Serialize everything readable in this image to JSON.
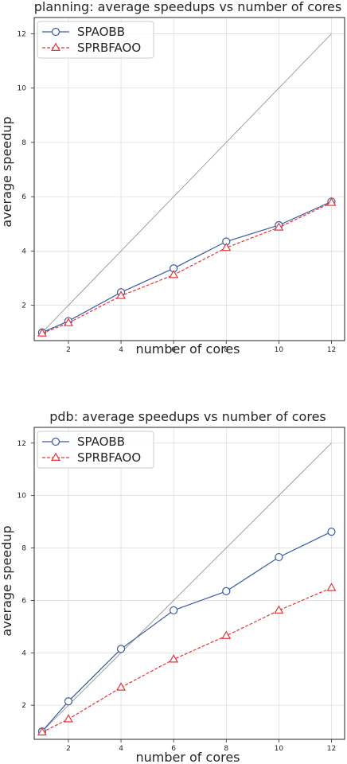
{
  "chart_data": [
    {
      "type": "line",
      "title": "planning: average speedups vs number of cores",
      "xlabel": "number of cores",
      "ylabel": "average speedup",
      "x": [
        1,
        2,
        4,
        6,
        8,
        10,
        12
      ],
      "xticks": [
        "2",
        "4",
        "6",
        "8",
        "10",
        "12"
      ],
      "yticks": [
        "2",
        "4",
        "6",
        "8",
        "10",
        "12"
      ],
      "xlim": [
        0.7,
        12.5
      ],
      "ylim": [
        0.7,
        12.6
      ],
      "grid": true,
      "legend_position": "top-left",
      "ideal_line": true,
      "series": [
        {
          "name": "SPAOBB",
          "values": [
            1.0,
            1.42,
            2.48,
            3.36,
            4.35,
            4.95,
            5.82
          ],
          "color": "#3a5ba0",
          "marker": "circle",
          "dash": "solid"
        },
        {
          "name": "SPRBFAOO",
          "values": [
            0.97,
            1.35,
            2.35,
            3.12,
            4.12,
            4.87,
            5.78
          ],
          "color": "#e3343a",
          "marker": "triangle",
          "dash": "dashed"
        }
      ]
    },
    {
      "type": "line",
      "title": "pdb: average speedups vs number of cores",
      "xlabel": "number of cores",
      "ylabel": "average speedup",
      "x": [
        1,
        2,
        4,
        6,
        8,
        10,
        12
      ],
      "xticks": [
        "2",
        "4",
        "6",
        "8",
        "10",
        "12"
      ],
      "yticks": [
        "2",
        "4",
        "6",
        "8",
        "10",
        "12"
      ],
      "xlim": [
        0.7,
        12.5
      ],
      "ylim": [
        0.7,
        12.6
      ],
      "grid": true,
      "legend_position": "top-left",
      "ideal_line": true,
      "series": [
        {
          "name": "SPAOBB",
          "values": [
            1.0,
            2.15,
            4.15,
            5.62,
            6.35,
            7.65,
            8.62
          ],
          "color": "#3a5ba0",
          "marker": "circle",
          "dash": "solid"
        },
        {
          "name": "SPRBFAOO",
          "values": [
            0.97,
            1.47,
            2.68,
            3.75,
            4.65,
            5.62,
            6.48
          ],
          "color": "#e3343a",
          "marker": "triangle",
          "dash": "dashed"
        }
      ]
    }
  ]
}
